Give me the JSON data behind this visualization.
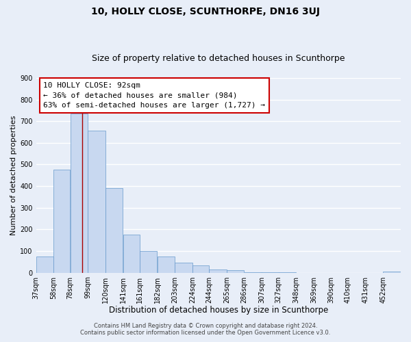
{
  "title": "10, HOLLY CLOSE, SCUNTHORPE, DN16 3UJ",
  "subtitle": "Size of property relative to detached houses in Scunthorpe",
  "xlabel": "Distribution of detached houses by size in Scunthorpe",
  "ylabel": "Number of detached properties",
  "bar_values": [
    75,
    475,
    735,
    655,
    390,
    175,
    100,
    75,
    47,
    33,
    15,
    10,
    3,
    2,
    1,
    0,
    0,
    0,
    0,
    0,
    5
  ],
  "bar_labels": [
    "37sqm",
    "58sqm",
    "78sqm",
    "99sqm",
    "120sqm",
    "141sqm",
    "161sqm",
    "182sqm",
    "203sqm",
    "224sqm",
    "244sqm",
    "265sqm",
    "286sqm",
    "307sqm",
    "327sqm",
    "348sqm",
    "369sqm",
    "390sqm",
    "410sqm",
    "431sqm",
    "452sqm"
  ],
  "bin_edges": [
    37,
    58,
    78,
    99,
    120,
    141,
    161,
    182,
    203,
    224,
    244,
    265,
    286,
    307,
    327,
    348,
    369,
    390,
    410,
    431,
    452,
    473
  ],
  "bar_color": "#c8d8f0",
  "bar_edge_color": "#6699cc",
  "ylim": [
    0,
    900
  ],
  "yticks": [
    0,
    100,
    200,
    300,
    400,
    500,
    600,
    700,
    800,
    900
  ],
  "property_size": 92,
  "red_line_color": "#aa0000",
  "annotation_title": "10 HOLLY CLOSE: 92sqm",
  "annotation_line1": "← 36% of detached houses are smaller (984)",
  "annotation_line2": "63% of semi-detached houses are larger (1,727) →",
  "annotation_box_color": "#ffffff",
  "annotation_box_edge": "#cc0000",
  "footer_line1": "Contains HM Land Registry data © Crown copyright and database right 2024.",
  "footer_line2": "Contains public sector information licensed under the Open Government Licence v3.0.",
  "background_color": "#e8eef8",
  "plot_background_color": "#e8eef8",
  "grid_color": "#ffffff",
  "title_fontsize": 10,
  "subtitle_fontsize": 9,
  "xlabel_fontsize": 8.5,
  "ylabel_fontsize": 8,
  "tick_fontsize": 7,
  "footer_fontsize": 6,
  "annotation_fontsize": 8
}
